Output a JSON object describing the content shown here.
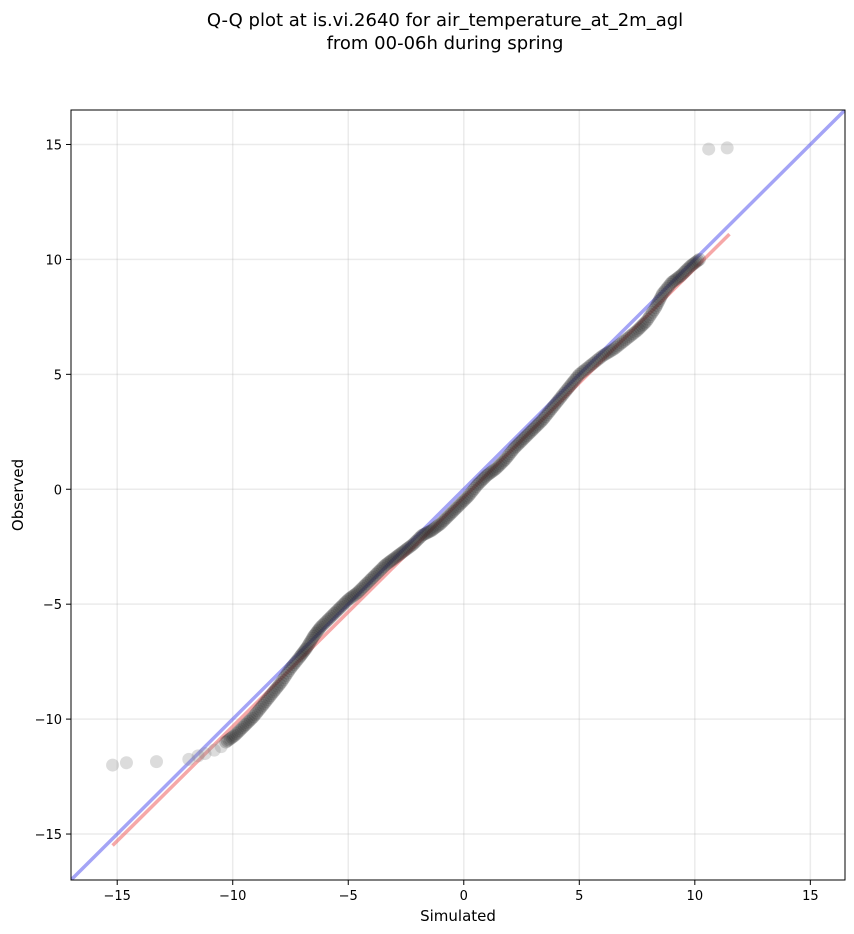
{
  "chart_data": {
    "type": "scatter",
    "title_line1": "Q-Q plot at is.vi.2640 for air_temperature_at_2m_agl",
    "title_line2": "from 00-06h during spring",
    "xlabel": "Simulated",
    "ylabel": "Observed",
    "xlim": [
      -17,
      16.5
    ],
    "ylim": [
      -17,
      16.5
    ],
    "xticks": [
      -15,
      -10,
      -5,
      0,
      5,
      10,
      15
    ],
    "yticks": [
      -15,
      -10,
      -5,
      0,
      5,
      10,
      15
    ],
    "xtick_labels": [
      "−15",
      "−10",
      "−5",
      "0",
      "5",
      "10",
      "15"
    ],
    "ytick_labels": [
      "−15",
      "−10",
      "−5",
      "0",
      "5",
      "10",
      "15"
    ],
    "grid": true,
    "identity_line": {
      "from": [
        -17,
        -17
      ],
      "to": [
        16.5,
        16.5
      ],
      "color": "#5a5aee"
    },
    "fit_line": {
      "from": [
        -15.2,
        -15.5
      ],
      "to": [
        11.5,
        11.1
      ],
      "color": "#ee6060"
    },
    "outlier_points": [
      [
        -15.2,
        -12.0
      ],
      [
        -14.6,
        -11.9
      ],
      [
        -13.3,
        -11.85
      ],
      [
        -11.9,
        -11.75
      ],
      [
        -11.5,
        -11.6
      ],
      [
        -11.2,
        -11.5
      ],
      [
        -10.8,
        -11.35
      ],
      [
        -10.5,
        -11.2
      ],
      [
        10.6,
        14.8
      ],
      [
        11.4,
        14.85
      ]
    ],
    "quantile_points": [
      [
        -10.3,
        -11.0
      ],
      [
        -9.9,
        -10.7
      ],
      [
        -9.5,
        -10.3
      ],
      [
        -9.1,
        -9.9
      ],
      [
        -8.7,
        -9.4
      ],
      [
        -8.3,
        -8.9
      ],
      [
        -7.9,
        -8.4
      ],
      [
        -7.5,
        -7.8
      ],
      [
        -7.1,
        -7.3
      ],
      [
        -6.8,
        -6.9
      ],
      [
        -6.5,
        -6.4
      ],
      [
        -6.2,
        -6.0
      ],
      [
        -5.8,
        -5.6
      ],
      [
        -5.4,
        -5.2
      ],
      [
        -5.0,
        -4.8
      ],
      [
        -4.6,
        -4.5
      ],
      [
        -4.2,
        -4.1
      ],
      [
        -3.8,
        -3.7
      ],
      [
        -3.4,
        -3.3
      ],
      [
        -3.0,
        -3.0
      ],
      [
        -2.6,
        -2.7
      ],
      [
        -2.2,
        -2.4
      ],
      [
        -1.8,
        -2.0
      ],
      [
        -1.4,
        -1.8
      ],
      [
        -1.0,
        -1.5
      ],
      [
        -0.6,
        -1.1
      ],
      [
        -0.2,
        -0.7
      ],
      [
        0.2,
        -0.3
      ],
      [
        0.6,
        0.2
      ],
      [
        1.0,
        0.6
      ],
      [
        1.4,
        0.9
      ],
      [
        1.8,
        1.3
      ],
      [
        2.2,
        1.8
      ],
      [
        2.6,
        2.2
      ],
      [
        3.0,
        2.6
      ],
      [
        3.4,
        3.0
      ],
      [
        3.8,
        3.5
      ],
      [
        4.2,
        4.0
      ],
      [
        4.6,
        4.5
      ],
      [
        5.0,
        5.0
      ],
      [
        5.5,
        5.4
      ],
      [
        6.0,
        5.8
      ],
      [
        6.5,
        6.1
      ],
      [
        7.0,
        6.5
      ],
      [
        7.5,
        6.9
      ],
      [
        7.9,
        7.3
      ],
      [
        8.3,
        7.9
      ],
      [
        8.6,
        8.5
      ],
      [
        9.0,
        9.0
      ],
      [
        9.4,
        9.3
      ],
      [
        9.8,
        9.7
      ],
      [
        10.2,
        10.0
      ]
    ]
  }
}
